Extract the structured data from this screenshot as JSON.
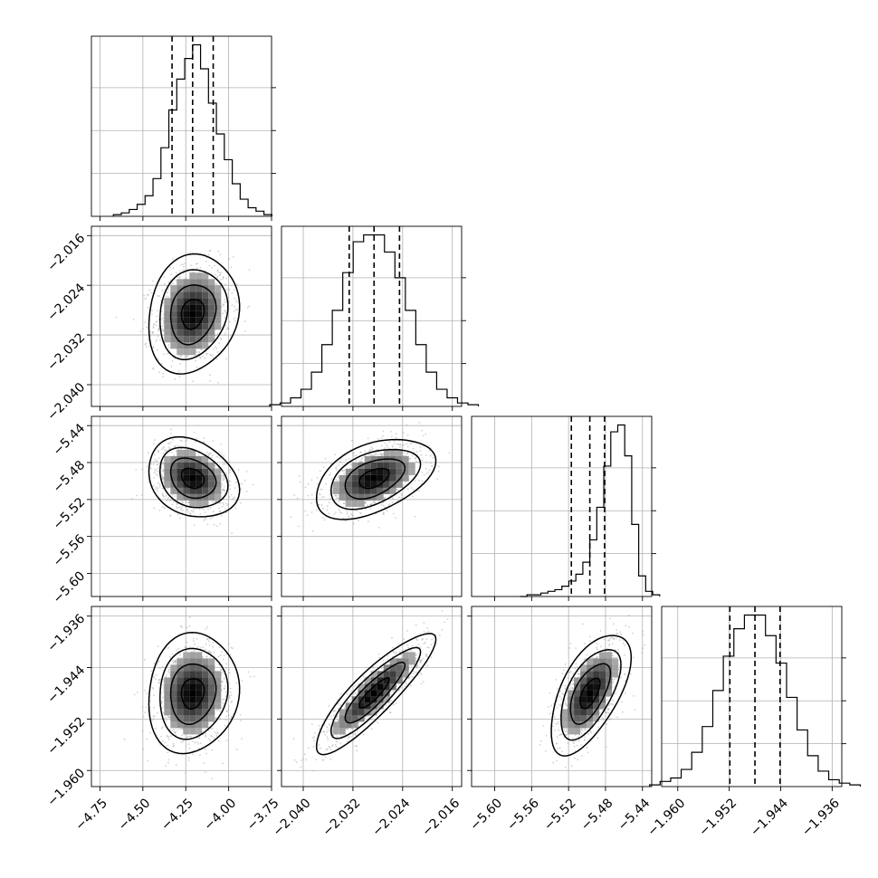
{
  "chart_data": {
    "type": "corner",
    "title": "",
    "grid": true,
    "parameters": [
      {
        "index": 0,
        "range": [
          -4.8,
          -3.75
        ],
        "ticks": [
          -4.75,
          -4.5,
          -4.25,
          -4.0,
          -3.75
        ],
        "tick_labels": [
          "−4.75",
          "−4.50",
          "−4.25",
          "−4.00",
          "−3.75"
        ],
        "quantiles": [
          -4.33,
          -4.21,
          -4.09
        ],
        "median": -4.21,
        "sigma": 0.11,
        "histogram": [
          1,
          2,
          4,
          7,
          12,
          22,
          40,
          62,
          80,
          92,
          100,
          86,
          66,
          48,
          33,
          19,
          10,
          5,
          3,
          1
        ]
      },
      {
        "index": 1,
        "range": [
          -2.0435,
          -2.0145
        ],
        "ticks": [
          -2.04,
          -2.032,
          -2.024,
          -2.016
        ],
        "tick_labels": [
          "−2.040",
          "−2.032",
          "−2.024",
          "−2.016"
        ],
        "quantiles": [
          -2.0326,
          -2.0286,
          -2.0245
        ],
        "median": -2.0286,
        "sigma": 0.004,
        "histogram": [
          1,
          2,
          5,
          10,
          20,
          36,
          56,
          78,
          96,
          100,
          100,
          90,
          75,
          56,
          36,
          20,
          10,
          5,
          2,
          1
        ]
      },
      {
        "index": 2,
        "range": [
          -5.625,
          -5.43
        ],
        "ticks": [
          -5.6,
          -5.56,
          -5.52,
          -5.48,
          -5.44
        ],
        "tick_labels": [
          "−5.60",
          "−5.56",
          "−5.52",
          "−5.48",
          "−5.44"
        ],
        "quantiles": [
          -5.517,
          -5.497,
          -5.481
        ],
        "median": -5.497,
        "sigma": 0.018,
        "histogram": [
          0,
          1,
          1,
          2,
          3,
          4,
          6,
          9,
          13,
          20,
          33,
          52,
          76,
          96,
          100,
          82,
          42,
          12,
          3,
          1
        ]
      },
      {
        "index": 3,
        "range": [
          -1.9625,
          -1.9345
        ],
        "ticks": [
          -1.96,
          -1.952,
          -1.944,
          -1.936
        ],
        "tick_labels": [
          "−1.960",
          "−1.952",
          "−1.944",
          "−1.936"
        ],
        "quantiles": [
          -1.9519,
          -1.948,
          -1.9441
        ],
        "median": -1.948,
        "sigma": 0.0039,
        "histogram": [
          1,
          3,
          5,
          10,
          20,
          35,
          56,
          76,
          92,
          100,
          100,
          88,
          72,
          52,
          33,
          18,
          9,
          4,
          2,
          1
        ]
      }
    ],
    "correlations": [
      {
        "x": 0,
        "y": 1,
        "rho": 0.15
      },
      {
        "x": 0,
        "y": 2,
        "rho": -0.25
      },
      {
        "x": 1,
        "y": 2,
        "rho": 0.45
      },
      {
        "x": 0,
        "y": 3,
        "rho": 0.1
      },
      {
        "x": 1,
        "y": 3,
        "rho": 0.88
      },
      {
        "x": 2,
        "y": 3,
        "rho": 0.6
      }
    ],
    "contour_levels_sigma": [
      0.5,
      1.0,
      1.5,
      2.0
    ]
  }
}
